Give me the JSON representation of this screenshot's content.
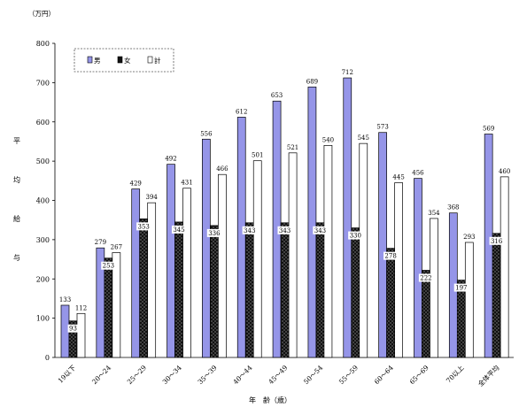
{
  "chart_data": {
    "type": "bar",
    "unit": "（万円）",
    "ylabel": "平均給与",
    "xlabel": "年　齢（歳）",
    "ylim": [
      0,
      800
    ],
    "yticks": [
      0,
      100,
      200,
      300,
      400,
      500,
      600,
      700,
      800
    ],
    "legend_position": "top-left",
    "categories": [
      "19以下",
      "20～24",
      "25～29",
      "30～34",
      "35～39",
      "40～44",
      "45～49",
      "50～54",
      "55～59",
      "60～64",
      "65～69",
      "70以上",
      "全体平均"
    ],
    "series": [
      {
        "name": "男",
        "color": "#9595e8",
        "values": [
          133,
          279,
          429,
          492,
          556,
          612,
          653,
          689,
          712,
          573,
          456,
          368,
          569
        ]
      },
      {
        "name": "女",
        "color": "#111111",
        "values": [
          93,
          253,
          353,
          345,
          336,
          343,
          343,
          343,
          330,
          278,
          222,
          197,
          316
        ]
      },
      {
        "name": "計",
        "color": "#ffffff",
        "values": [
          112,
          267,
          394,
          431,
          466,
          501,
          521,
          540,
          545,
          445,
          354,
          293,
          460
        ]
      }
    ]
  }
}
